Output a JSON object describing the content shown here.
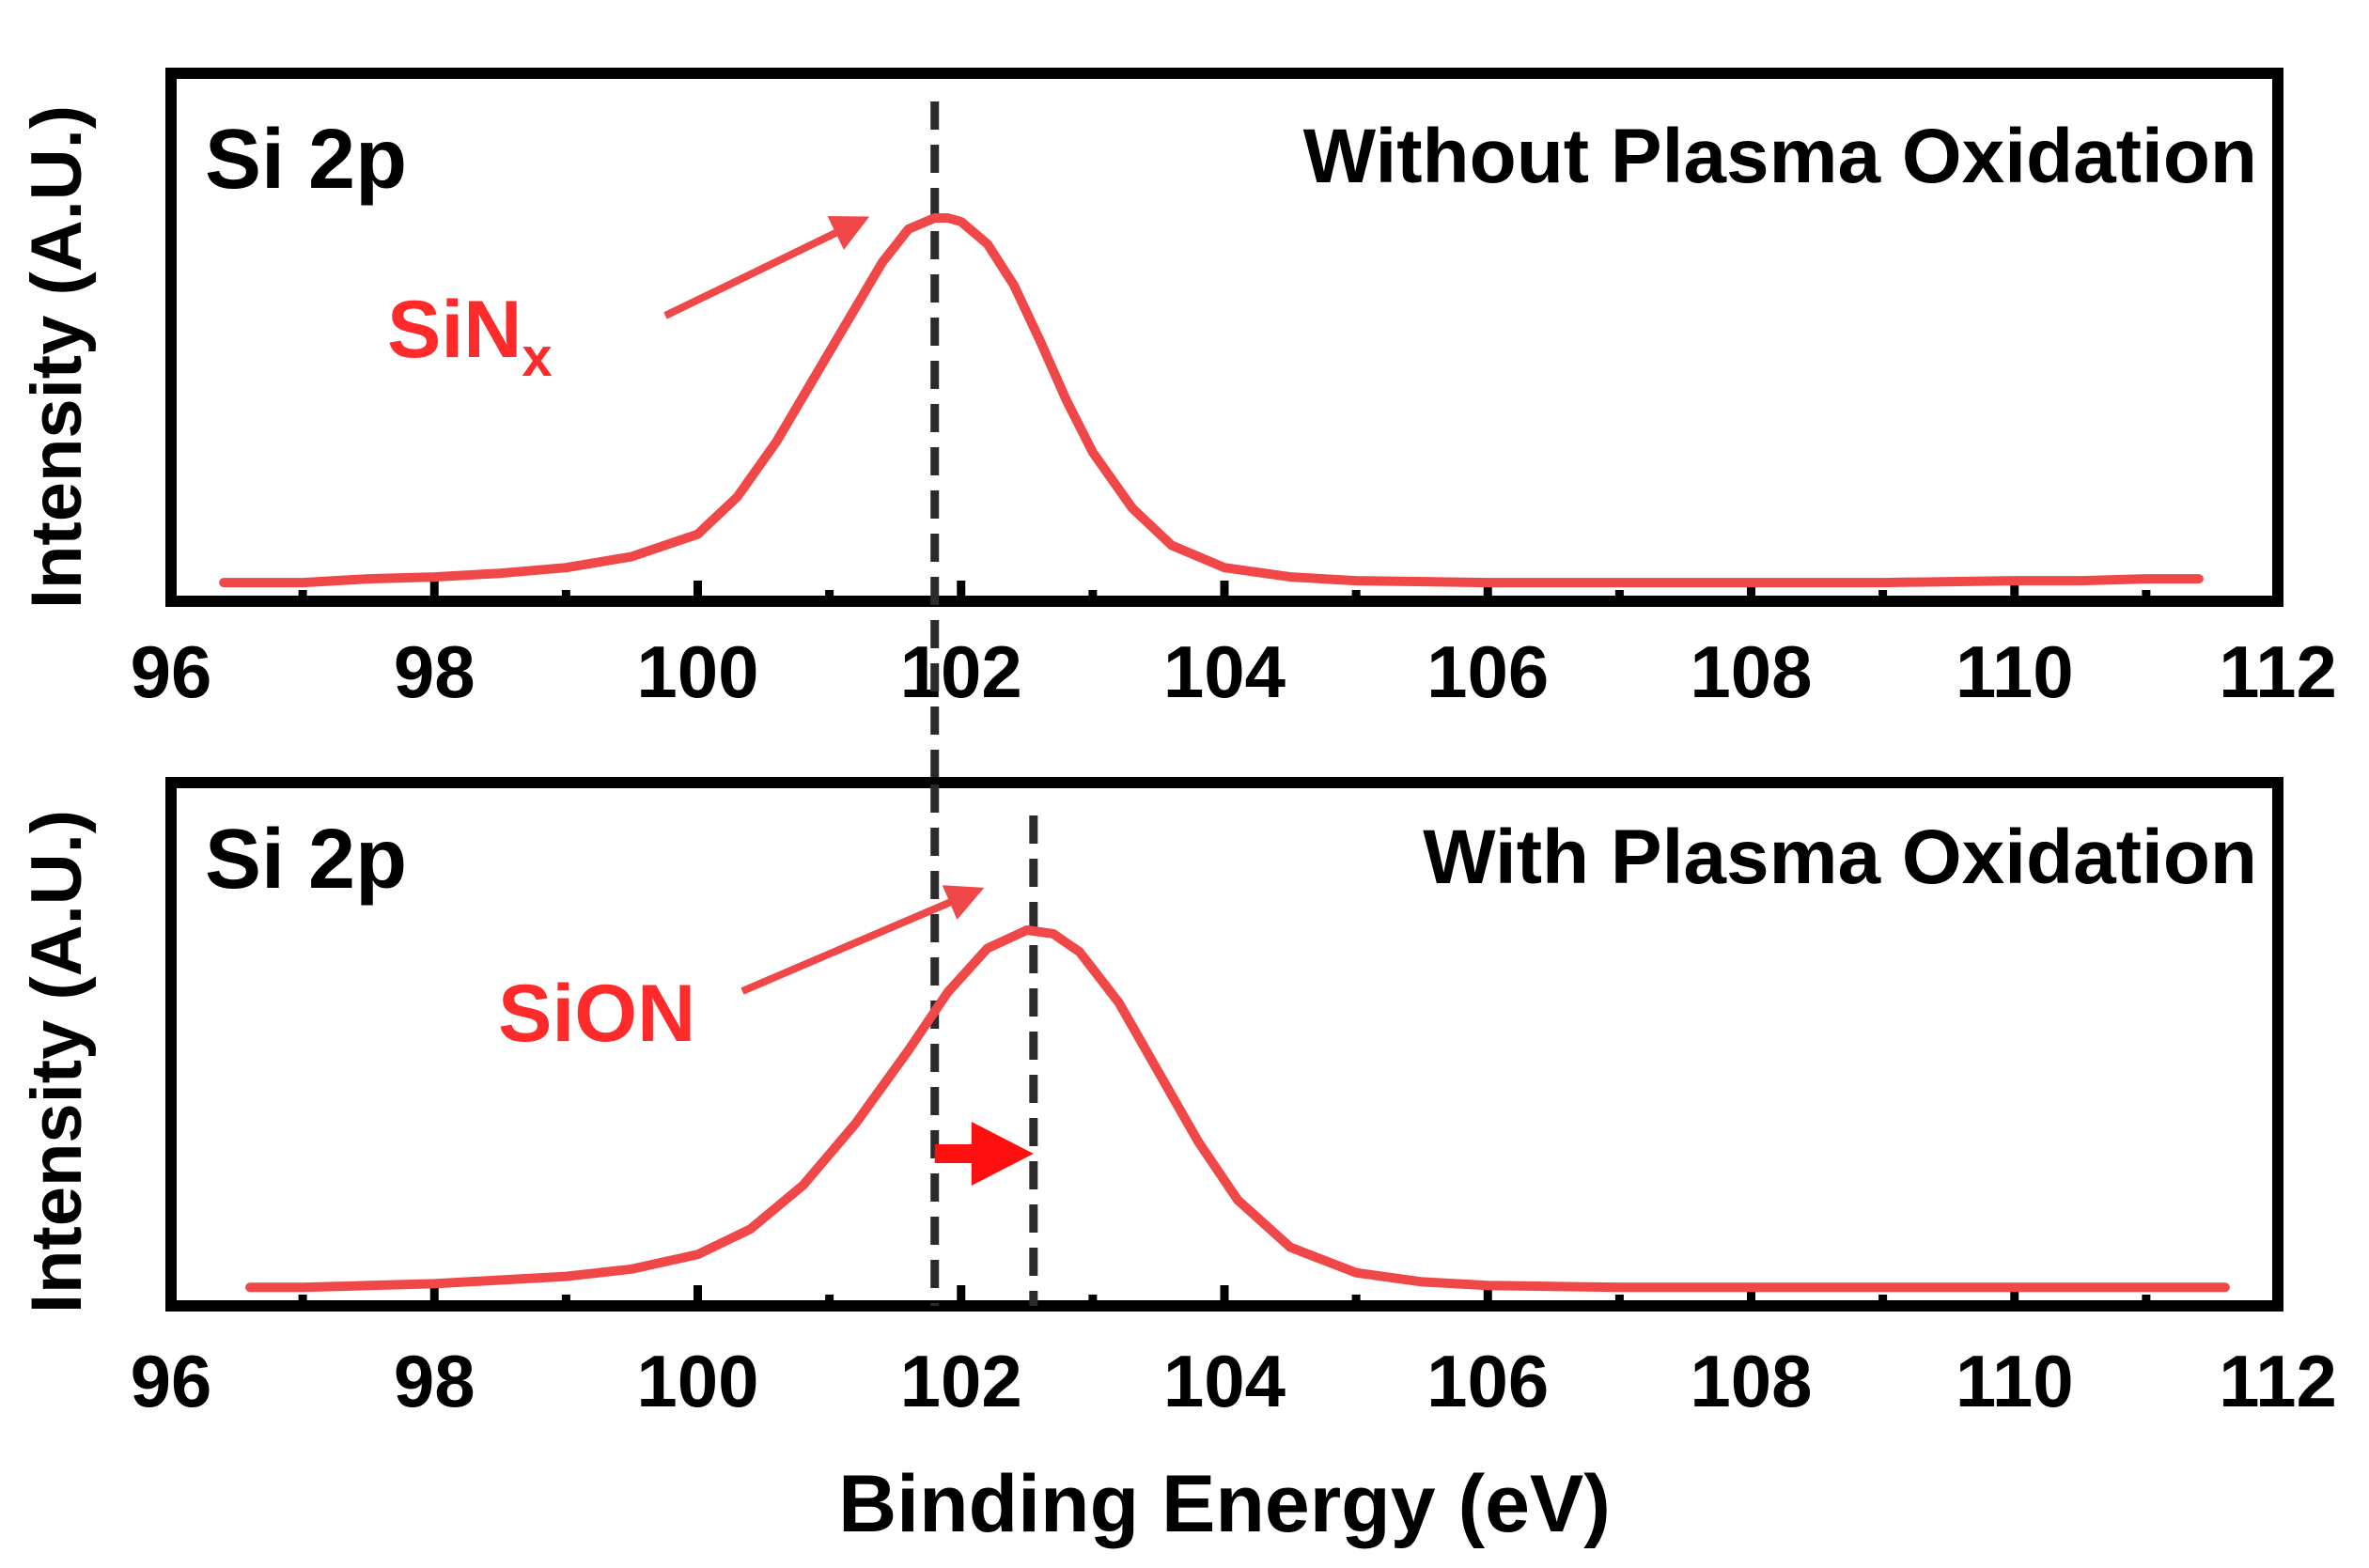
{
  "chart_data": [
    {
      "type": "line",
      "panel_label": "Si 2p",
      "condition": "Without Plasma Oxidation",
      "ylabel": "Intensity (A.U.)",
      "xlabel": "",
      "xlim": [
        96,
        112
      ],
      "ylim": [
        0,
        1.05
      ],
      "x_ticks": [
        96,
        98,
        100,
        102,
        104,
        106,
        108,
        110,
        112
      ],
      "x_tick_labels": [
        "96",
        "98",
        "100",
        "102",
        "104",
        "106",
        "108",
        "110",
        "112"
      ],
      "series": [
        {
          "name": "SiNx",
          "color": "#f04848",
          "x": [
            96.4,
            97,
            97.5,
            98,
            98.5,
            99,
            99.5,
            100,
            100.3,
            100.6,
            100.9,
            101.2,
            101.4,
            101.6,
            101.8,
            101.9,
            102.0,
            102.2,
            102.4,
            102.6,
            102.8,
            103.0,
            103.3,
            103.6,
            104.0,
            104.5,
            105,
            106,
            107,
            108,
            109,
            110,
            110.5,
            111,
            111.4
          ],
          "y": [
            0.02,
            0.02,
            0.03,
            0.035,
            0.045,
            0.06,
            0.09,
            0.15,
            0.25,
            0.4,
            0.58,
            0.76,
            0.88,
            0.97,
            1.0,
            1.0,
            0.99,
            0.93,
            0.82,
            0.67,
            0.51,
            0.37,
            0.22,
            0.12,
            0.06,
            0.035,
            0.025,
            0.02,
            0.02,
            0.02,
            0.02,
            0.025,
            0.025,
            0.03,
            0.03
          ]
        }
      ],
      "reference_lines_x": [
        101.8
      ],
      "annotations": [
        {
          "text": "SiN",
          "subscript": "x",
          "color": "#ff2a2a",
          "points_to_x": 101.7
        }
      ]
    },
    {
      "type": "line",
      "panel_label": "Si 2p",
      "condition": "With Plasma Oxidation",
      "ylabel": "Intensity (A.U.)",
      "xlabel": "Binding Energy (eV)",
      "xlim": [
        96,
        112
      ],
      "ylim": [
        0,
        1.05
      ],
      "x_ticks": [
        96,
        98,
        100,
        102,
        104,
        106,
        108,
        110,
        112
      ],
      "x_tick_labels": [
        "96",
        "98",
        "100",
        "102",
        "104",
        "106",
        "108",
        "110",
        "112"
      ],
      "series": [
        {
          "name": "SiON",
          "color": "#f04848",
          "x": [
            96.6,
            97,
            97.5,
            98,
            98.5,
            99,
            99.5,
            100,
            100.4,
            100.8,
            101.2,
            101.6,
            101.9,
            102.2,
            102.5,
            102.7,
            102.9,
            103.2,
            103.5,
            103.8,
            104.1,
            104.5,
            105,
            105.5,
            106,
            107,
            108,
            109,
            110,
            110.5,
            111,
            111.6
          ],
          "y": [
            0.02,
            0.02,
            0.025,
            0.03,
            0.04,
            0.05,
            0.07,
            0.11,
            0.18,
            0.3,
            0.47,
            0.67,
            0.83,
            0.95,
            1.0,
            0.99,
            0.94,
            0.8,
            0.61,
            0.42,
            0.26,
            0.13,
            0.06,
            0.035,
            0.025,
            0.02,
            0.02,
            0.02,
            0.02,
            0.02,
            0.02,
            0.02
          ]
        }
      ],
      "reference_lines_x": [
        101.8,
        102.55
      ],
      "shift_arrow": {
        "from_x": 101.8,
        "to_x": 102.55,
        "color": "#ff1010"
      },
      "annotations": [
        {
          "text": "SiON",
          "subscript": "",
          "color": "#ff2a2a",
          "points_to_x": 102.25
        }
      ]
    }
  ]
}
